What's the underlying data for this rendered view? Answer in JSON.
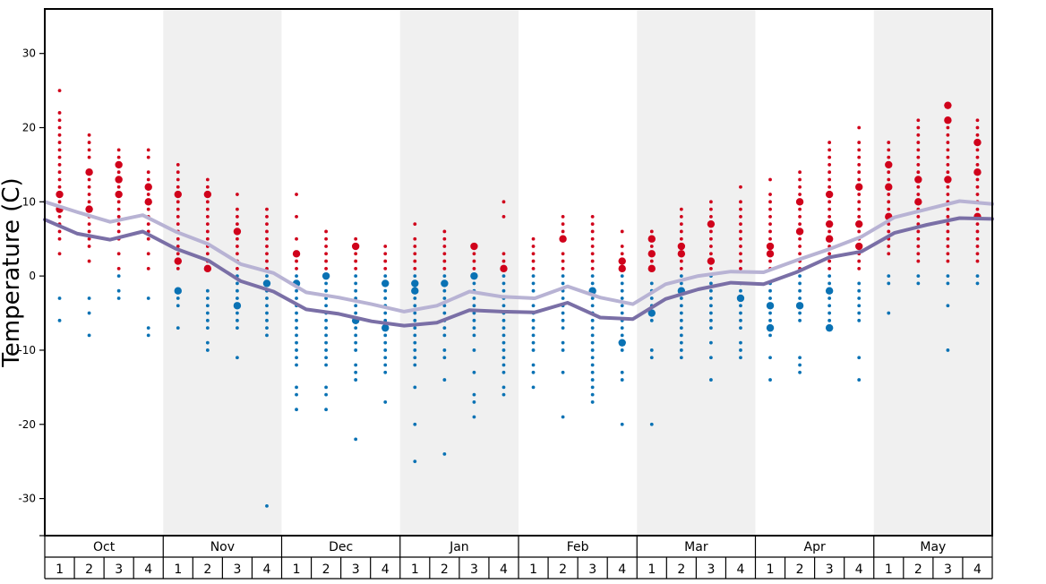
{
  "chart_data": {
    "type": "scatter",
    "ylabel": "Temperature (C)",
    "ylim": [
      -35,
      36
    ],
    "yticks": [
      30,
      20,
      10,
      0,
      -10,
      -20,
      -30
    ],
    "ytick_labels": [
      "30",
      "20",
      "10",
      "0",
      "-10",
      "-20",
      "-30"
    ],
    "months": [
      "Oct",
      "Nov",
      "Dec",
      "Jan",
      "Feb",
      "Mar",
      "Apr",
      "May"
    ],
    "weeks": [
      "1",
      "2",
      "3",
      "4"
    ],
    "shaded_months": [
      "Nov",
      "Jan",
      "Mar",
      "May"
    ],
    "colors": {
      "warm_dots": "#d0021b",
      "cold_dots": "#0a72b4",
      "upper_line": "#b8b3d4",
      "lower_line": "#7a6fa6",
      "shade": "#f0f0f0",
      "frame": "#000000"
    },
    "line_series": [
      {
        "values": [
          10.0,
          8.6,
          7.3,
          8.2,
          6.0,
          4.3,
          1.6,
          0.4,
          -2.2,
          -2.9,
          -3.8,
          -4.8,
          -4.0,
          -2.1,
          -2.8,
          -3.0,
          -1.4,
          -2.9,
          -3.8,
          -1.1,
          0.0,
          0.6,
          0.5,
          2.1,
          3.6,
          5.3,
          7.9,
          9.0,
          10.1,
          9.7
        ]
      },
      {
        "values": [
          7.6,
          5.7,
          4.9,
          6.0,
          3.7,
          2.1,
          -0.7,
          -2.1,
          -4.5,
          -5.1,
          -6.1,
          -6.7,
          -6.3,
          -4.6,
          -4.8,
          -4.9,
          -3.6,
          -5.6,
          -5.8,
          -3.1,
          -1.8,
          -0.9,
          -1.1,
          0.5,
          2.5,
          3.3,
          5.8,
          6.9,
          7.8,
          7.7
        ]
      }
    ],
    "weekly_observations": [
      {
        "month": "Oct",
        "week": "1",
        "warm": [
          3,
          5,
          6,
          7,
          8,
          9,
          10,
          11,
          12,
          13,
          14,
          15,
          16,
          17,
          18,
          19,
          20,
          21,
          22,
          25
        ],
        "cold": [
          -3,
          -6
        ],
        "big_warm": [
          9,
          11
        ],
        "big_cold": []
      },
      {
        "month": "Oct",
        "week": "2",
        "warm": [
          2,
          4,
          5,
          6,
          7,
          8,
          9,
          10,
          11,
          12,
          13,
          14,
          16,
          17,
          18,
          19
        ],
        "cold": [
          -3,
          -5,
          -8
        ],
        "big_warm": [
          9,
          14
        ],
        "big_cold": []
      },
      {
        "month": "Oct",
        "week": "3",
        "warm": [
          1,
          3,
          5,
          6,
          7,
          8,
          9,
          10,
          11,
          12,
          13,
          14,
          15,
          16,
          17
        ],
        "cold": [
          0,
          -2,
          -3
        ],
        "big_warm": [
          11,
          13,
          15
        ],
        "big_cold": []
      },
      {
        "month": "Oct",
        "week": "4",
        "warm": [
          1,
          3,
          5,
          6,
          7,
          8,
          9,
          10,
          11,
          12,
          13,
          14,
          16,
          17
        ],
        "cold": [
          -3,
          -7,
          -8
        ],
        "big_warm": [
          10,
          12
        ],
        "big_cold": []
      },
      {
        "month": "Nov",
        "week": "1",
        "warm": [
          1,
          2,
          3,
          4,
          5,
          6,
          7,
          8,
          9,
          10,
          11,
          12,
          13,
          14,
          15
        ],
        "cold": [
          -2,
          -3,
          -4,
          -7
        ],
        "big_warm": [
          2,
          11
        ],
        "big_cold": [
          -2
        ]
      },
      {
        "month": "Nov",
        "week": "2",
        "warm": [
          1,
          2,
          3,
          4,
          5,
          6,
          7,
          8,
          9,
          10,
          11,
          12,
          13
        ],
        "cold": [
          -2,
          -3,
          -4,
          -5,
          -6,
          -7,
          -9,
          -10
        ],
        "big_warm": [
          1,
          11
        ],
        "big_cold": []
      },
      {
        "month": "Nov",
        "week": "3",
        "warm": [
          1,
          2,
          3,
          4,
          5,
          6,
          7,
          8,
          9,
          11
        ],
        "cold": [
          0,
          -1,
          -2,
          -3,
          -4,
          -5,
          -6,
          -7,
          -11
        ],
        "big_warm": [
          6
        ],
        "big_cold": [
          -4
        ]
      },
      {
        "month": "Nov",
        "week": "4",
        "warm": [
          1,
          2,
          3,
          4,
          5,
          6,
          7,
          8,
          9
        ],
        "cold": [
          0,
          -1,
          -2,
          -3,
          -4,
          -5,
          -6,
          -7,
          -8,
          -31
        ],
        "big_warm": [],
        "big_cold": [
          -1
        ]
      },
      {
        "month": "Dec",
        "week": "1",
        "warm": [
          1,
          2,
          3,
          5,
          8,
          11
        ],
        "cold": [
          0,
          -1,
          -2,
          -3,
          -4,
          -5,
          -6,
          -7,
          -8,
          -9,
          -10,
          -11,
          -12,
          -15,
          -16,
          -18
        ],
        "big_warm": [
          3
        ],
        "big_cold": [
          -1
        ]
      },
      {
        "month": "Dec",
        "week": "2",
        "warm": [
          1,
          2,
          3,
          4,
          5,
          6
        ],
        "cold": [
          0,
          -1,
          -2,
          -3,
          -4,
          -5,
          -6,
          -7,
          -8,
          -9,
          -10,
          -11,
          -12,
          -15,
          -16,
          -18
        ],
        "big_warm": [],
        "big_cold": [
          0
        ]
      },
      {
        "month": "Dec",
        "week": "3",
        "warm": [
          1,
          2,
          3,
          4,
          5
        ],
        "cold": [
          0,
          -1,
          -2,
          -3,
          -4,
          -5,
          -6,
          -7,
          -8,
          -9,
          -10,
          -12,
          -13,
          -14,
          -22
        ],
        "big_warm": [
          4
        ],
        "big_cold": [
          -6
        ]
      },
      {
        "month": "Dec",
        "week": "4",
        "warm": [
          1,
          2,
          3,
          4
        ],
        "cold": [
          0,
          -1,
          -2,
          -3,
          -4,
          -5,
          -6,
          -7,
          -8,
          -9,
          -10,
          -11,
          -12,
          -13,
          -17
        ],
        "big_warm": [],
        "big_cold": [
          -1,
          -7
        ]
      },
      {
        "month": "Jan",
        "week": "1",
        "warm": [
          1,
          2,
          3,
          4,
          5,
          7
        ],
        "cold": [
          0,
          -1,
          -2,
          -3,
          -4,
          -5,
          -6,
          -7,
          -8,
          -9,
          -10,
          -11,
          -12,
          -15,
          -20,
          -25
        ],
        "big_warm": [],
        "big_cold": [
          -1,
          -2
        ]
      },
      {
        "month": "Jan",
        "week": "2",
        "warm": [
          1,
          2,
          3,
          4,
          5,
          6
        ],
        "cold": [
          0,
          -1,
          -2,
          -3,
          -4,
          -5,
          -6,
          -7,
          -8,
          -10,
          -11,
          -14,
          -24
        ],
        "big_warm": [],
        "big_cold": [
          -1
        ]
      },
      {
        "month": "Jan",
        "week": "3",
        "warm": [
          1,
          2,
          3,
          4
        ],
        "cold": [
          0,
          -1,
          -2,
          -3,
          -4,
          -5,
          -6,
          -7,
          -8,
          -10,
          -13,
          -16,
          -17,
          -19
        ],
        "big_warm": [
          4
        ],
        "big_cold": [
          0
        ]
      },
      {
        "month": "Jan",
        "week": "4",
        "warm": [
          1,
          2,
          3,
          8,
          10
        ],
        "cold": [
          0,
          -1,
          -2,
          -3,
          -4,
          -5,
          -6,
          -7,
          -8,
          -9,
          -10,
          -11,
          -12,
          -13,
          -15,
          -16
        ],
        "big_warm": [
          1
        ],
        "big_cold": []
      },
      {
        "month": "Feb",
        "week": "1",
        "warm": [
          1,
          2,
          3,
          4,
          5
        ],
        "cold": [
          0,
          -1,
          -2,
          -3,
          -4,
          -5,
          -6,
          -7,
          -8,
          -9,
          -10,
          -12,
          -13,
          -15
        ],
        "big_warm": [],
        "big_cold": []
      },
      {
        "month": "Feb",
        "week": "2",
        "warm": [
          1,
          2,
          3,
          5,
          6,
          7,
          8
        ],
        "cold": [
          0,
          -1,
          -2,
          -3,
          -4,
          -5,
          -6,
          -7,
          -9,
          -10,
          -13,
          -19
        ],
        "big_warm": [
          5
        ],
        "big_cold": []
      },
      {
        "month": "Feb",
        "week": "3",
        "warm": [
          1,
          2,
          3,
          4,
          5,
          6,
          7,
          8
        ],
        "cold": [
          0,
          -1,
          -2,
          -3,
          -4,
          -5,
          -6,
          -7,
          -8,
          -9,
          -10,
          -11,
          -12,
          -13,
          -14,
          -15,
          -16,
          -17
        ],
        "big_warm": [],
        "big_cold": [
          -2
        ]
      },
      {
        "month": "Feb",
        "week": "4",
        "warm": [
          1,
          2,
          3,
          4,
          6
        ],
        "cold": [
          0,
          -1,
          -2,
          -3,
          -4,
          -5,
          -6,
          -7,
          -8,
          -9,
          -10,
          -13,
          -14,
          -20
        ],
        "big_warm": [
          1,
          2
        ],
        "big_cold": [
          -9
        ]
      },
      {
        "month": "Mar",
        "week": "1",
        "warm": [
          1,
          2,
          3,
          4,
          5,
          6
        ],
        "cold": [
          -1,
          -2,
          -3,
          -4,
          -5,
          -6,
          -10,
          -11,
          -20
        ],
        "big_warm": [
          1,
          3,
          5
        ],
        "big_cold": [
          -5
        ]
      },
      {
        "month": "Mar",
        "week": "2",
        "warm": [
          1,
          2,
          3,
          4,
          5,
          6,
          7,
          8,
          9
        ],
        "cold": [
          0,
          -1,
          -2,
          -3,
          -4,
          -5,
          -6,
          -7,
          -8,
          -9,
          -10,
          -11
        ],
        "big_warm": [
          3,
          4
        ],
        "big_cold": [
          -2
        ]
      },
      {
        "month": "Mar",
        "week": "3",
        "warm": [
          1,
          2,
          3,
          4,
          5,
          6,
          7,
          8,
          9,
          10
        ],
        "cold": [
          0,
          -1,
          -2,
          -3,
          -4,
          -5,
          -6,
          -7,
          -9,
          -11,
          -14
        ],
        "big_warm": [
          2,
          7
        ],
        "big_cold": []
      },
      {
        "month": "Mar",
        "week": "4",
        "warm": [
          1,
          2,
          3,
          4,
          5,
          6,
          7,
          8,
          9,
          10,
          12
        ],
        "cold": [
          -1,
          -2,
          -3,
          -4,
          -5,
          -6,
          -7,
          -9,
          -10,
          -11
        ],
        "big_warm": [],
        "big_cold": [
          -3
        ]
      },
      {
        "month": "Apr",
        "week": "1",
        "warm": [
          1,
          2,
          3,
          4,
          5,
          6,
          7,
          8,
          9,
          10,
          11,
          13
        ],
        "cold": [
          -1,
          -2,
          -3,
          -4,
          -5,
          -6,
          -7,
          -8,
          -11,
          -14
        ],
        "big_warm": [
          3,
          4
        ],
        "big_cold": [
          -4,
          -7
        ]
      },
      {
        "month": "Apr",
        "week": "2",
        "warm": [
          1,
          2,
          3,
          4,
          5,
          6,
          7,
          8,
          9,
          10,
          11,
          12,
          13,
          14
        ],
        "cold": [
          0,
          -1,
          -2,
          -3,
          -4,
          -5,
          -6,
          -11,
          -12,
          -13
        ],
        "big_warm": [
          6,
          10
        ],
        "big_cold": [
          -4
        ]
      },
      {
        "month": "Apr",
        "week": "3",
        "warm": [
          1,
          2,
          3,
          4,
          5,
          6,
          7,
          8,
          9,
          10,
          11,
          12,
          13,
          14,
          15,
          16,
          17,
          18
        ],
        "cold": [
          0,
          -1,
          -2,
          -3,
          -4,
          -5,
          -6,
          -7
        ],
        "big_warm": [
          5,
          7,
          11
        ],
        "big_cold": [
          -2,
          -7
        ]
      },
      {
        "month": "Apr",
        "week": "4",
        "warm": [
          1,
          2,
          3,
          4,
          5,
          6,
          7,
          8,
          9,
          10,
          11,
          12,
          13,
          14,
          15,
          16,
          17,
          18,
          20
        ],
        "cold": [
          -1,
          -2,
          -3,
          -4,
          -5,
          -6,
          -11,
          -14
        ],
        "big_warm": [
          4,
          7,
          12
        ],
        "big_cold": []
      },
      {
        "month": "May",
        "week": "1",
        "warm": [
          3,
          4,
          5,
          6,
          7,
          8,
          9,
          10,
          11,
          12,
          13,
          14,
          15,
          16,
          17,
          18
        ],
        "cold": [
          0,
          -1,
          -5
        ],
        "big_warm": [
          8,
          12,
          15
        ],
        "big_cold": []
      },
      {
        "month": "May",
        "week": "2",
        "warm": [
          2,
          3,
          4,
          5,
          6,
          7,
          8,
          9,
          10,
          11,
          12,
          13,
          14,
          15,
          16,
          17,
          18,
          19,
          20,
          21
        ],
        "cold": [
          0,
          -1
        ],
        "big_warm": [
          10,
          13
        ],
        "big_cold": []
      },
      {
        "month": "May",
        "week": "3",
        "warm": [
          2,
          3,
          4,
          5,
          6,
          7,
          8,
          9,
          10,
          11,
          12,
          13,
          14,
          15,
          16,
          17,
          18,
          19,
          20,
          21,
          23
        ],
        "cold": [
          0,
          -1,
          -4,
          -10
        ],
        "big_warm": [
          13,
          21,
          23
        ],
        "big_cold": []
      },
      {
        "month": "May",
        "week": "4",
        "warm": [
          2,
          3,
          4,
          5,
          6,
          7,
          8,
          9,
          10,
          11,
          12,
          13,
          14,
          15,
          16,
          17,
          18,
          19,
          20,
          21
        ],
        "cold": [
          0,
          -1
        ],
        "big_warm": [
          8,
          14,
          18
        ],
        "big_cold": []
      }
    ]
  }
}
